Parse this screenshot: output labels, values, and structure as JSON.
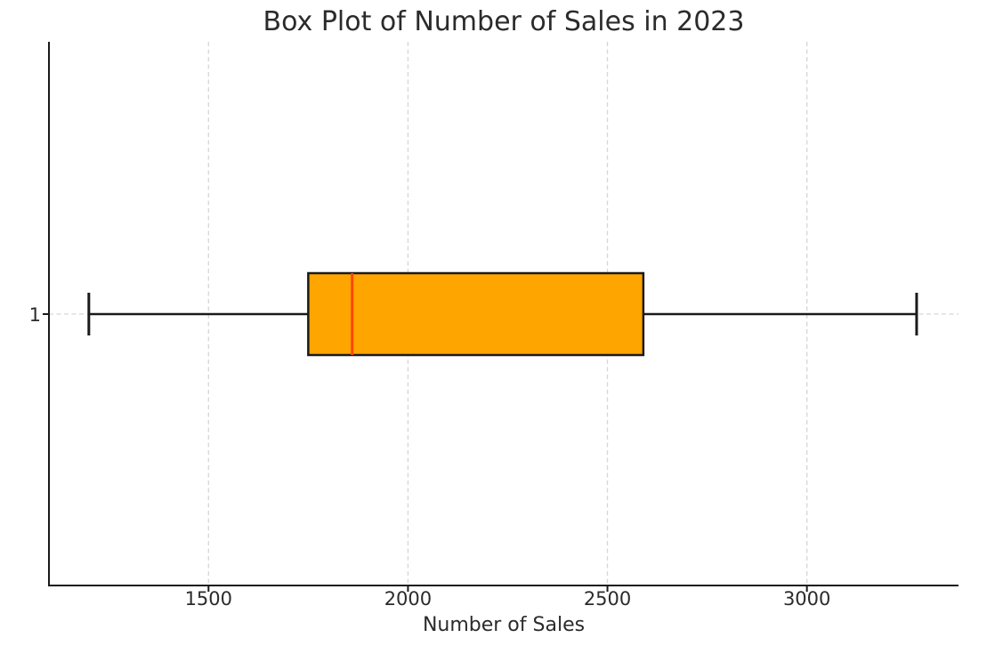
{
  "page": {
    "background": "#ffffff"
  },
  "chart_data": {
    "type": "boxplot",
    "orientation": "horizontal",
    "title": "Box Plot of Number of Sales in 2023",
    "xlabel": "Number of Sales",
    "ylabel": "",
    "categories": [
      "1"
    ],
    "series": [
      {
        "whisker_low": 1200,
        "q1": 1750,
        "median": 1860,
        "q3": 2590,
        "whisker_high": 3275,
        "outliers": []
      }
    ],
    "xlim": [
      1100,
      3380
    ],
    "xticks": [
      "1500",
      "2000",
      "2500",
      "3000"
    ],
    "xtick_values": [
      1500,
      2000,
      2500,
      3000
    ],
    "ytick_labels": [
      "1"
    ],
    "grid": {
      "visible": true,
      "style": "dashed",
      "color": "#d6d6d6"
    },
    "legend": null,
    "colors": {
      "box_fill": "#ffa500",
      "box_edge": "#1a1a1a",
      "median_line": "#ff4500",
      "whisker": "#1a1a1a",
      "spine": "#1a1a1a",
      "text": "#2b2b2b"
    }
  }
}
